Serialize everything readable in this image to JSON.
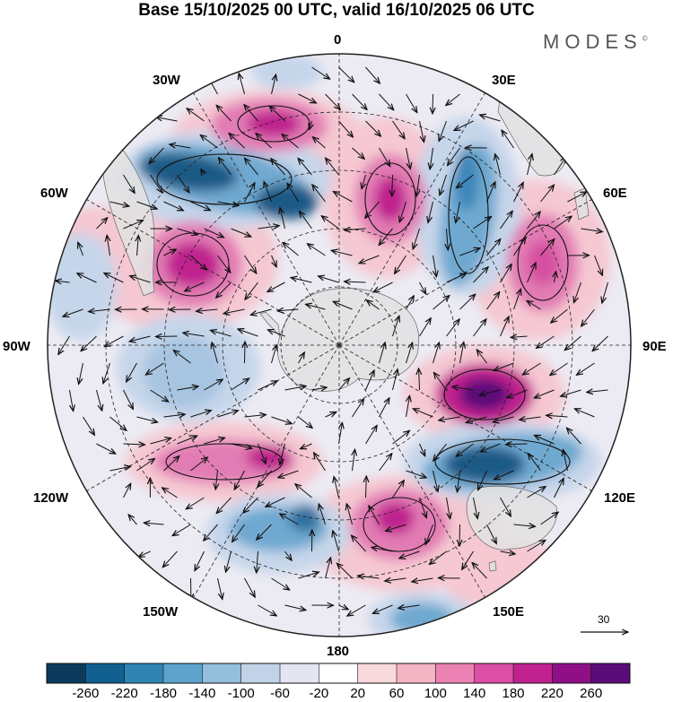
{
  "title": "Base 15/10/2025 00 UTC, valid 16/10/2025 06 UTC",
  "brand": "MODES",
  "brand_mark": "©",
  "meridians": {
    "m0": "0",
    "m30e": "30E",
    "m60e": "60E",
    "m90e": "90E",
    "m120e": "120E",
    "m150e": "150E",
    "m180": "180",
    "m150w": "150W",
    "m120w": "120W",
    "m90w": "90W",
    "m60w": "60W",
    "m30w": "30W"
  },
  "reference_vector": "30",
  "colorbar": {
    "labels": [
      "-260",
      "-220",
      "-180",
      "-140",
      "-100",
      "-60",
      "-20",
      "20",
      "60",
      "100",
      "140",
      "180",
      "220",
      "260"
    ],
    "colors": [
      "#0b3a5c",
      "#12608f",
      "#2f84b4",
      "#5ea3cb",
      "#93bedc",
      "#c2d3e8",
      "#e3e6f1",
      "#ffffff",
      "#f8d9dc",
      "#f3b4c4",
      "#ec82b4",
      "#dc4fa6",
      "#c0228f",
      "#8e0f86",
      "#5a0c78"
    ]
  },
  "map_colors": {
    "negative_strong": "#1a5a86",
    "negative_mid": "#6fa9d0",
    "negative_weak": "#c6d6ea",
    "positive_strong": "#c0228f",
    "positive_mid": "#e27bb4",
    "positive_weak": "#f5c8d2",
    "land": "#e2e2e2"
  }
}
